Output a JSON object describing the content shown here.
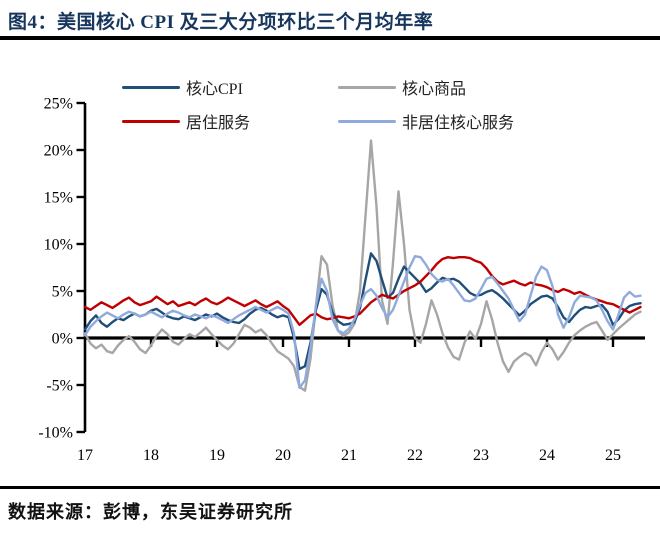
{
  "page": {
    "title": "图4：美国核心 CPI 及三大分项环比三个月均年率",
    "source": "数据来源：彭博，东吴证券研究所"
  },
  "chart_data": {
    "type": "line",
    "title": "美国核心 CPI 及三大分项环比三个月均年率",
    "unit": "%（环比三个月均年率）",
    "x_start": "2017-01",
    "x_end": "2025-06",
    "x_tick_labels": [
      "17",
      "18",
      "19",
      "20",
      "21",
      "22",
      "23",
      "24",
      "25"
    ],
    "y_ticks": [
      25,
      20,
      15,
      10,
      5,
      0,
      -5,
      -10
    ],
    "y_tick_labels": [
      "25%",
      "20%",
      "15%",
      "10%",
      "5%",
      "0%",
      "-5%",
      "-10%"
    ],
    "ylim": [
      -10,
      25
    ],
    "grid": false,
    "legend_position": "top",
    "series": [
      {
        "name": "核心CPI",
        "key": "core-cpi",
        "color": "#1F4E79",
        "values": [
          0.9,
          1.8,
          2.4,
          1.6,
          1.2,
          1.7,
          2.1,
          1.9,
          2.3,
          2.6,
          2.3,
          2.5,
          2.9,
          3.1,
          2.7,
          2.3,
          2.1,
          2.0,
          2.3,
          2.1,
          1.9,
          2.2,
          2.5,
          2.3,
          2.6,
          2.2,
          1.9,
          1.7,
          1.6,
          2.0,
          2.6,
          3.0,
          3.2,
          2.9,
          2.5,
          2.2,
          2.4,
          2.2,
          0.0,
          -3.3,
          -3.0,
          -0.5,
          3.0,
          5.2,
          4.6,
          2.7,
          1.8,
          1.4,
          1.5,
          1.7,
          3.2,
          6.2,
          9.0,
          8.2,
          6.2,
          4.3,
          4.8,
          6.3,
          7.6,
          7.0,
          6.4,
          5.8,
          4.9,
          5.3,
          5.9,
          6.4,
          6.2,
          6.3,
          6.0,
          5.4,
          4.8,
          4.5,
          4.6,
          4.9,
          5.1,
          4.7,
          4.2,
          3.6,
          3.0,
          2.4,
          2.9,
          3.6,
          4.0,
          4.4,
          4.5,
          4.2,
          3.3,
          2.2,
          1.7,
          2.4,
          3.0,
          3.3,
          3.2,
          3.4,
          3.5,
          2.8,
          1.4,
          2.0,
          2.9,
          3.4,
          3.6,
          3.7
        ]
      },
      {
        "name": "核心商品",
        "key": "core-goods",
        "color": "#A6A6A6",
        "values": [
          0.5,
          -0.6,
          -1.1,
          -0.7,
          -1.4,
          -1.6,
          -0.8,
          -0.2,
          0.2,
          -0.4,
          -1.2,
          -1.6,
          -0.8,
          0.2,
          0.9,
          0.4,
          -0.4,
          -0.7,
          -0.1,
          0.4,
          0.1,
          0.6,
          1.1,
          0.4,
          -0.2,
          -0.8,
          -1.2,
          -0.6,
          0.4,
          1.4,
          1.1,
          0.6,
          0.9,
          0.3,
          -0.6,
          -1.4,
          -1.8,
          -2.2,
          -3.0,
          -5.2,
          -5.6,
          -2.2,
          3.5,
          8.7,
          7.8,
          3.5,
          0.8,
          0.2,
          0.6,
          1.5,
          5.0,
          13.0,
          21.0,
          14.0,
          4.0,
          1.5,
          8.0,
          15.6,
          10.0,
          3.0,
          0.0,
          -0.5,
          1.5,
          4.0,
          2.5,
          0.5,
          -1.0,
          -2.0,
          -2.3,
          -0.5,
          0.7,
          -0.1,
          1.5,
          3.9,
          2.0,
          -0.5,
          -2.5,
          -3.6,
          -2.5,
          -2.0,
          -1.6,
          -1.9,
          -2.9,
          -1.5,
          -0.5,
          -1.2,
          -2.3,
          -1.5,
          -0.5,
          0.3,
          0.8,
          1.2,
          1.5,
          1.7,
          0.8,
          -0.2,
          0.4,
          1.0,
          1.5,
          2.0,
          2.5,
          2.8
        ]
      },
      {
        "name": "居住服务",
        "key": "housing-services",
        "color": "#C00000",
        "values": [
          3.3,
          3.0,
          3.4,
          3.8,
          3.5,
          3.2,
          3.6,
          4.0,
          4.3,
          3.8,
          3.5,
          3.7,
          3.9,
          4.4,
          4.0,
          3.6,
          3.9,
          3.4,
          3.6,
          3.8,
          3.5,
          3.9,
          4.2,
          3.8,
          3.6,
          3.9,
          4.3,
          4.0,
          3.7,
          3.4,
          3.7,
          4.0,
          3.6,
          3.3,
          3.6,
          3.9,
          3.4,
          3.0,
          2.2,
          1.4,
          1.9,
          2.4,
          2.6,
          2.2,
          2.0,
          2.1,
          2.3,
          2.2,
          2.1,
          2.3,
          2.6,
          3.2,
          3.8,
          4.2,
          4.6,
          4.4,
          4.2,
          4.6,
          5.0,
          5.3,
          5.6,
          6.0,
          6.6,
          7.2,
          7.9,
          8.4,
          8.6,
          8.5,
          8.6,
          8.6,
          8.5,
          8.2,
          8.0,
          7.4,
          6.6,
          6.0,
          5.7,
          5.9,
          6.1,
          5.8,
          5.6,
          5.9,
          5.7,
          5.6,
          5.4,
          5.1,
          4.9,
          5.2,
          5.0,
          4.7,
          4.9,
          4.6,
          4.3,
          4.1,
          3.9,
          3.7,
          3.6,
          3.3,
          3.0,
          2.7,
          3.0,
          3.3
        ]
      },
      {
        "name": "非居住核心服务",
        "key": "non-housing-core-services",
        "color": "#8FAADC",
        "values": [
          0.3,
          1.2,
          1.8,
          2.3,
          2.7,
          2.4,
          2.1,
          2.5,
          2.8,
          2.6,
          2.3,
          2.5,
          2.8,
          2.5,
          2.2,
          2.6,
          2.9,
          2.7,
          2.4,
          2.2,
          2.5,
          2.3,
          2.1,
          2.4,
          2.2,
          1.9,
          1.6,
          2.0,
          2.4,
          2.7,
          3.0,
          3.3,
          3.0,
          2.7,
          3.0,
          3.3,
          3.0,
          2.6,
          0.5,
          -5.3,
          -4.5,
          -1.0,
          3.5,
          6.3,
          5.0,
          2.0,
          0.8,
          0.5,
          1.0,
          2.0,
          3.5,
          4.8,
          5.2,
          4.5,
          3.2,
          2.2,
          3.0,
          4.5,
          6.0,
          7.5,
          8.7,
          8.6,
          7.8,
          6.8,
          6.2,
          6.0,
          6.3,
          5.6,
          4.8,
          4.0,
          3.9,
          4.2,
          5.2,
          6.3,
          6.5,
          5.8,
          5.0,
          4.2,
          3.0,
          1.8,
          2.5,
          4.5,
          6.5,
          7.6,
          7.2,
          5.5,
          2.5,
          1.1,
          2.2,
          3.8,
          4.5,
          4.4,
          4.3,
          4.0,
          3.0,
          1.8,
          0.9,
          2.5,
          4.3,
          4.9,
          4.4,
          4.5
        ]
      }
    ]
  }
}
